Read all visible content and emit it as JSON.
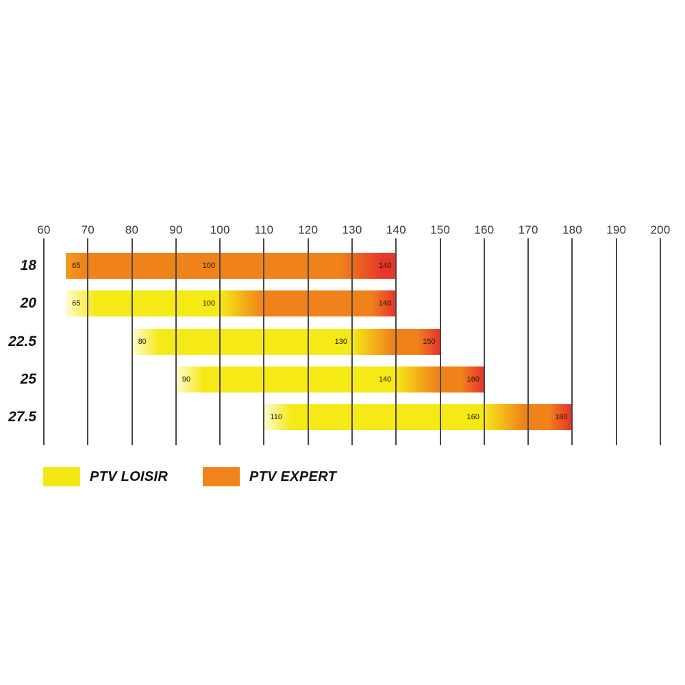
{
  "chart_data": {
    "type": "bar",
    "orientation": "horizontal-range",
    "title": "",
    "axis": {
      "position": "top",
      "min": 60,
      "max": 200,
      "step": 10,
      "tick_labels": [
        60,
        70,
        80,
        90,
        100,
        110,
        120,
        130,
        140,
        150,
        160,
        170,
        180,
        190,
        200
      ]
    },
    "categories": [
      "18",
      "20",
      "22.5",
      "25",
      "27.5"
    ],
    "rows": [
      {
        "category": "18",
        "start": 65,
        "end": 140,
        "value_labels": [
          65,
          100,
          140
        ],
        "series": "expert",
        "transition_at": null
      },
      {
        "category": "20",
        "start": 65,
        "end": 140,
        "value_labels": [
          65,
          100,
          140
        ],
        "series": "loisir-to-expert",
        "transition_at": 100
      },
      {
        "category": "22.5",
        "start": 80,
        "end": 150,
        "value_labels": [
          80,
          130,
          150
        ],
        "series": "loisir-to-expert",
        "transition_at": 130
      },
      {
        "category": "25",
        "start": 90,
        "end": 160,
        "value_labels": [
          90,
          140,
          160
        ],
        "series": "loisir-to-expert",
        "transition_at": 140
      },
      {
        "category": "27.5",
        "start": 110,
        "end": 180,
        "value_labels": [
          110,
          160,
          180
        ],
        "series": "loisir-to-expert",
        "transition_at": 160
      }
    ],
    "legend": [
      {
        "label": "PTV LOISIR",
        "color": "#F3E716"
      },
      {
        "label": "PTV EXPERT",
        "color": "#F0831A"
      }
    ],
    "colors": {
      "loisir_yellow": "#F5E916",
      "loisir_pale": "#FEFBD2",
      "expert_orange": "#F0821A",
      "expert_light": "#F49A1E",
      "red_end": "#E6372A",
      "gridline": "#474747",
      "bar_label_text": "#241505",
      "axis_label_text": "#383838"
    },
    "grid": true,
    "legend_position": "bottom-left"
  }
}
